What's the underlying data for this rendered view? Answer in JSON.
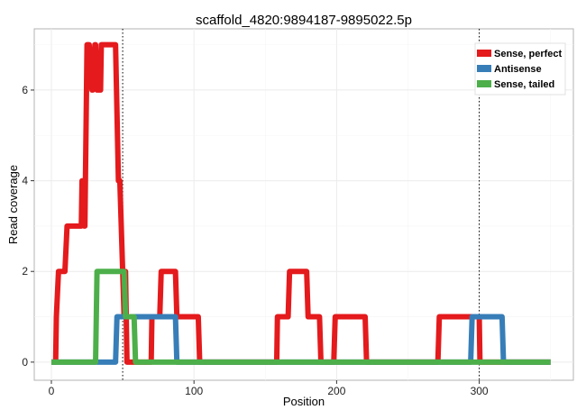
{
  "chart_data": {
    "type": "line",
    "title": "scaffold_4820:9894187-9895022.5p",
    "xlabel": "Position",
    "ylabel": "Read coverage",
    "xlim": [
      -12,
      366
    ],
    "ylim": [
      -0.4,
      7.35
    ],
    "xticks": [
      0,
      100,
      200,
      300
    ],
    "yticks": [
      0,
      2,
      4,
      6
    ],
    "grid": true,
    "vlines": [
      50,
      300
    ],
    "legend_position": "top-right",
    "series": [
      {
        "name": "Sense, perfect",
        "color": "#e41a1c",
        "points": [
          [
            0,
            0
          ],
          [
            3,
            0
          ],
          [
            3.5,
            1
          ],
          [
            5,
            2
          ],
          [
            9.5,
            2
          ],
          [
            11,
            3
          ],
          [
            21,
            3
          ],
          [
            21.5,
            4
          ],
          [
            22.5,
            4
          ],
          [
            23,
            3
          ],
          [
            23.5,
            3
          ],
          [
            25,
            7
          ],
          [
            26.5,
            7
          ],
          [
            28.5,
            6
          ],
          [
            29,
            6
          ],
          [
            30.5,
            7
          ],
          [
            31,
            7
          ],
          [
            32,
            6
          ],
          [
            34.5,
            6
          ],
          [
            35,
            7
          ],
          [
            37,
            7
          ],
          [
            45,
            7
          ],
          [
            47,
            4
          ],
          [
            48,
            4
          ],
          [
            51,
            1
          ],
          [
            52,
            2
          ],
          [
            53,
            0
          ],
          [
            70,
            0
          ],
          [
            70.5,
            1
          ],
          [
            76,
            1
          ],
          [
            77,
            2
          ],
          [
            87,
            2
          ],
          [
            88,
            1
          ],
          [
            103,
            1
          ],
          [
            104,
            0
          ],
          [
            158,
            0
          ],
          [
            158.5,
            1
          ],
          [
            166,
            1
          ],
          [
            167,
            2
          ],
          [
            179,
            2
          ],
          [
            180,
            1
          ],
          [
            188,
            1
          ],
          [
            189,
            0
          ],
          [
            198,
            0
          ],
          [
            199,
            1
          ],
          [
            220,
            1
          ],
          [
            221,
            0
          ],
          [
            271,
            0
          ],
          [
            272,
            1
          ],
          [
            300,
            1
          ],
          [
            300.5,
            0
          ],
          [
            350,
            0
          ]
        ]
      },
      {
        "name": "Antisense",
        "color": "#377eb8",
        "points": [
          [
            0,
            0
          ],
          [
            45,
            0
          ],
          [
            46,
            1
          ],
          [
            87,
            1
          ],
          [
            88,
            0
          ],
          [
            294,
            0
          ],
          [
            295,
            1
          ],
          [
            316,
            1
          ],
          [
            317,
            0
          ],
          [
            350,
            0
          ]
        ]
      },
      {
        "name": "Sense, tailed",
        "color": "#4daf4a",
        "points": [
          [
            0,
            0
          ],
          [
            31,
            0
          ],
          [
            32,
            2
          ],
          [
            51,
            2
          ],
          [
            52,
            1
          ],
          [
            58,
            1
          ],
          [
            59,
            0
          ],
          [
            350,
            0
          ]
        ]
      }
    ]
  }
}
